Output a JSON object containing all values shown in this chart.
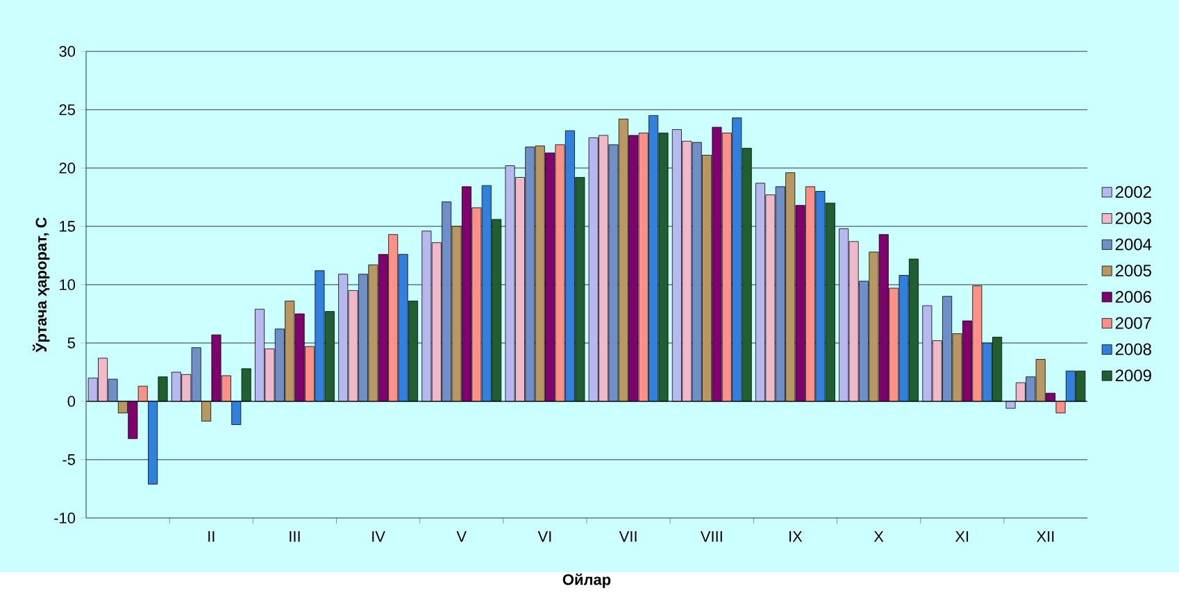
{
  "chart_data": {
    "type": "bar",
    "xlabel": "Ойлар",
    "ylabel": "Ўртача ҳарорат, С",
    "categories": [
      null,
      "II",
      "III",
      "IV",
      "V",
      "VI",
      "VII",
      "VIII",
      "IX",
      "X",
      "XI",
      "XII"
    ],
    "series": [
      {
        "name": "2002",
        "color": "#b8b8f0",
        "values": [
          2.0,
          2.5,
          7.9,
          10.9,
          14.6,
          20.2,
          22.6,
          23.3,
          18.7,
          14.8,
          8.2,
          -0.6
        ]
      },
      {
        "name": "2003",
        "color": "#f0b8c8",
        "values": [
          3.7,
          2.3,
          4.5,
          9.5,
          13.6,
          19.2,
          22.8,
          22.3,
          17.7,
          13.7,
          5.2,
          1.6
        ]
      },
      {
        "name": "2004",
        "color": "#6f8fc8",
        "values": [
          1.9,
          4.6,
          6.2,
          10.9,
          17.1,
          21.8,
          22.0,
          22.2,
          18.4,
          10.3,
          9.0,
          2.1
        ]
      },
      {
        "name": "2005",
        "color": "#b89860",
        "values": [
          -1.0,
          -1.7,
          8.6,
          11.7,
          15.0,
          21.9,
          24.2,
          21.1,
          19.6,
          12.8,
          5.8,
          3.6
        ]
      },
      {
        "name": "2006",
        "color": "#800070",
        "values": [
          -3.2,
          5.7,
          7.5,
          12.6,
          18.4,
          21.3,
          22.8,
          23.5,
          16.8,
          14.3,
          6.9,
          0.7
        ]
      },
      {
        "name": "2007",
        "color": "#ff9088",
        "values": [
          1.3,
          2.2,
          4.7,
          14.3,
          16.6,
          22.0,
          23.0,
          23.0,
          18.4,
          9.7,
          9.9,
          -1.0
        ]
      },
      {
        "name": "2008",
        "color": "#3080e0",
        "values": [
          -7.1,
          -2.0,
          11.2,
          12.6,
          18.5,
          23.2,
          24.5,
          24.3,
          18.0,
          10.8,
          5.0,
          2.6
        ]
      },
      {
        "name": "2009",
        "color": "#1f5f30",
        "values": [
          2.1,
          2.8,
          7.7,
          8.6,
          15.6,
          19.2,
          23.0,
          21.7,
          17.0,
          12.2,
          5.5,
          2.6
        ]
      }
    ],
    "ylim": [
      -10,
      30
    ],
    "yticks": [
      -10,
      -5,
      0,
      5,
      10,
      15,
      20,
      25,
      30
    ],
    "grid": "y",
    "legend": "right"
  }
}
